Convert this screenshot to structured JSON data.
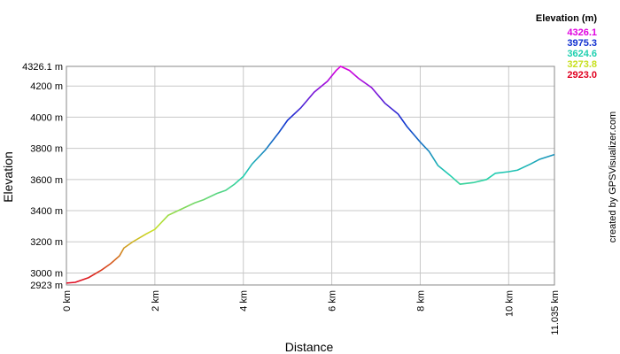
{
  "chart_data": {
    "type": "line",
    "x_label": "Distance",
    "y_label": "Elevation",
    "credit": "created by GPSVisualizer.com",
    "x": [
      0,
      0.2,
      0.5,
      0.8,
      1.0,
      1.2,
      1.3,
      1.5,
      1.8,
      2.0,
      2.1,
      2.3,
      2.6,
      2.9,
      3.1,
      3.4,
      3.6,
      3.8,
      4.0,
      4.2,
      4.5,
      4.8,
      5.0,
      5.3,
      5.6,
      5.9,
      6.1,
      6.2,
      6.4,
      6.6,
      6.9,
      7.2,
      7.5,
      7.7,
      8.0,
      8.2,
      8.4,
      8.7,
      8.9,
      9.2,
      9.5,
      9.7,
      10.0,
      10.2,
      10.5,
      10.7,
      11.035
    ],
    "series": [
      {
        "values": [
          2935,
          2940,
          2970,
          3020,
          3060,
          3110,
          3160,
          3200,
          3250,
          3280,
          3310,
          3370,
          3410,
          3450,
          3470,
          3510,
          3530,
          3570,
          3620,
          3700,
          3790,
          3900,
          3980,
          4060,
          4160,
          4230,
          4300,
          4326.1,
          4300,
          4250,
          4190,
          4090,
          4020,
          3940,
          3840,
          3780,
          3690,
          3620,
          3570,
          3580,
          3600,
          3640,
          3650,
          3660,
          3700,
          3730,
          3760
        ]
      }
    ],
    "xlim": [
      0,
      11.035
    ],
    "xticks": [
      {
        "value": 0,
        "label": "0 km"
      },
      {
        "value": 2,
        "label": "2 km"
      },
      {
        "value": 4,
        "label": "4 km"
      },
      {
        "value": 6,
        "label": "6 km"
      },
      {
        "value": 8,
        "label": "8 km"
      },
      {
        "value": 10,
        "label": "10 km"
      },
      {
        "value": 11.035,
        "label": "11.035 km"
      }
    ],
    "ylim": [
      2923,
      4326.1
    ],
    "yticks": [
      {
        "value": 2923,
        "label": "2923 m"
      },
      {
        "value": 3000,
        "label": "3000 m"
      },
      {
        "value": 3200,
        "label": "3200 m"
      },
      {
        "value": 3400,
        "label": "3400 m"
      },
      {
        "value": 3600,
        "label": "3600 m"
      },
      {
        "value": 3800,
        "label": "3800 m"
      },
      {
        "value": 4000,
        "label": "4000 m"
      },
      {
        "value": 4200,
        "label": "4200 m"
      },
      {
        "value": 4326.1,
        "label": "4326.1 m"
      }
    ],
    "grid": true,
    "legend": {
      "title": "Elevation (m)",
      "entries": [
        {
          "value": 4326.1,
          "label": "4326.1",
          "color": "#e000e0"
        },
        {
          "value": 3975.3,
          "label": "3975.3",
          "color": "#1030d0"
        },
        {
          "value": 3624.6,
          "label": "3624.6",
          "color": "#20d0b0"
        },
        {
          "value": 3273.8,
          "label": "3273.8",
          "color": "#c8e020"
        },
        {
          "value": 2923,
          "label": "2923.0",
          "color": "#e00020"
        }
      ]
    }
  }
}
